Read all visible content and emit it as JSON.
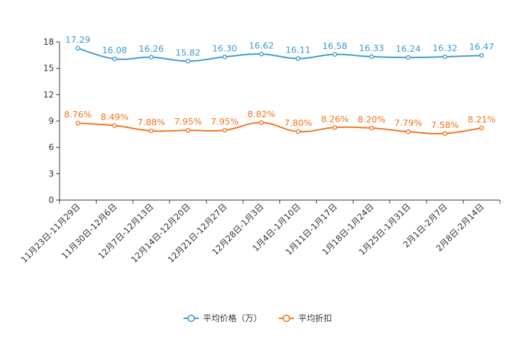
{
  "chart_data": {
    "type": "line",
    "title": "",
    "xlabel": "",
    "ylabel": "",
    "ylim": [
      0,
      18
    ],
    "yticks": [
      0,
      3,
      6,
      9,
      12,
      15,
      18
    ],
    "grid": false,
    "legend_position": "bottom",
    "categories": [
      "11月23日-11月29日",
      "11月30日-12月6日",
      "12月7日-12月13日",
      "12月14日-12月20日",
      "12月21日-12月27日",
      "12月28日-1月3日",
      "1月4日-1月10日",
      "1月11日-1月17日",
      "1月18日-1月24日",
      "1月25日-1月31日",
      "2月1日-2月7日",
      "2月8日-2月14日"
    ],
    "series": [
      {
        "name": "平均价格（万）",
        "color": "#3c9bd2",
        "values": [
          17.29,
          16.08,
          16.26,
          15.82,
          16.3,
          16.62,
          16.11,
          16.58,
          16.33,
          16.24,
          16.32,
          16.47
        ],
        "labels": [
          "17.29",
          "16.08",
          "16.26",
          "15.82",
          "16.30",
          "16.62",
          "16.11",
          "16.58",
          "16.33",
          "16.24",
          "16.32",
          "16.47"
        ]
      },
      {
        "name": "平均折扣",
        "color": "#f4731c",
        "values": [
          8.76,
          8.49,
          7.88,
          7.95,
          7.95,
          8.82,
          7.8,
          8.26,
          8.2,
          7.79,
          7.58,
          8.21
        ],
        "labels": [
          "8.76%",
          "8.49%",
          "7.88%",
          "7.95%",
          "7.95%",
          "8.82%",
          "7.80%",
          "8.26%",
          "8.20%",
          "7.79%",
          "7.58%",
          "8.21%"
        ]
      }
    ]
  }
}
